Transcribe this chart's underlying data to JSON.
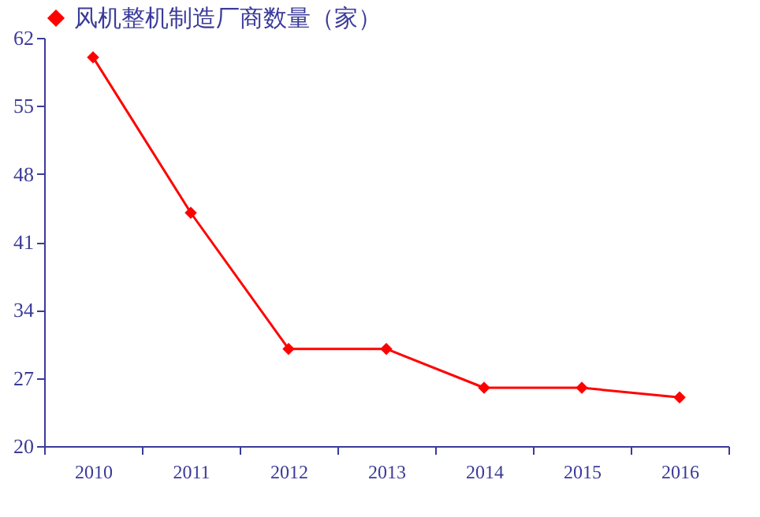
{
  "chart_data": {
    "type": "line",
    "categories": [
      "2010",
      "2011",
      "2012",
      "2013",
      "2014",
      "2015",
      "2016"
    ],
    "series": [
      {
        "name": "风机整机制造厂商数量（家）",
        "color": "#ff0000",
        "values": [
          60,
          44,
          30,
          30,
          26,
          26,
          25
        ]
      }
    ],
    "ylim": [
      20,
      62
    ],
    "yticks": [
      20,
      27,
      34,
      41,
      48,
      55,
      62
    ],
    "marker": "diamond",
    "line_style": "solid",
    "legend": "top"
  }
}
